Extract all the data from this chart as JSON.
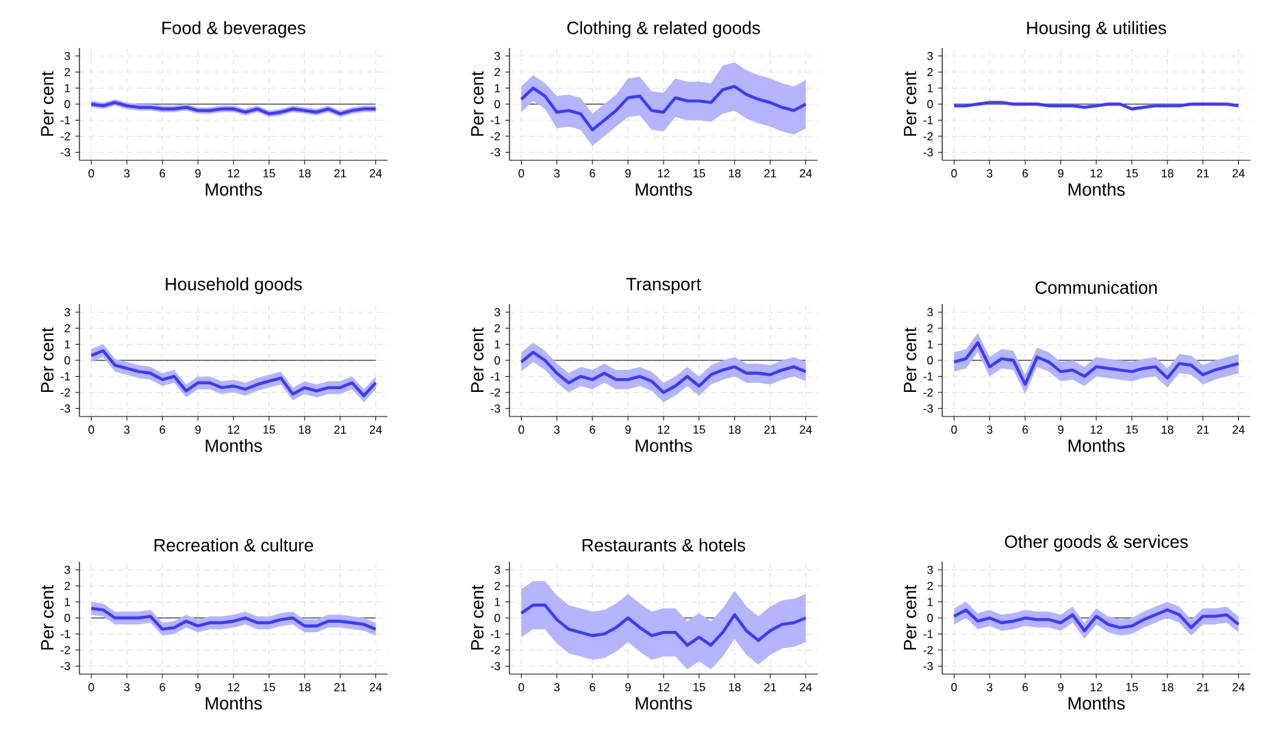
{
  "chart_data": [
    {
      "type": "line",
      "title": "Food & beverages",
      "xlabel": "Months",
      "ylabel": "Per cent",
      "x": [
        0,
        1,
        2,
        3,
        4,
        5,
        6,
        7,
        8,
        9,
        10,
        11,
        12,
        13,
        14,
        15,
        16,
        17,
        18,
        19,
        20,
        21,
        22,
        23,
        24
      ],
      "xlim": [
        -1,
        25
      ],
      "ylim": [
        -3.5,
        3.5
      ],
      "xticks": [
        0,
        3,
        6,
        9,
        12,
        15,
        18,
        21,
        24
      ],
      "yticks": [
        -3,
        -2,
        -1,
        0,
        1,
        2,
        3
      ],
      "grid": true,
      "ref_lines": [
        {
          "axis": "y",
          "value": 0,
          "color": "#000000"
        }
      ],
      "series": [
        {
          "color": "#3a3aff",
          "values": [
            0,
            -0.1,
            0.1,
            -0.1,
            -0.2,
            -0.2,
            -0.3,
            -0.3,
            -0.2,
            -0.4,
            -0.4,
            -0.3,
            -0.3,
            -0.5,
            -0.3,
            -0.6,
            -0.5,
            -0.3,
            -0.4,
            -0.5,
            -0.3,
            -0.6,
            -0.4,
            -0.3,
            -0.3
          ],
          "lower": [
            -0.2,
            -0.3,
            -0.1,
            -0.3,
            -0.4,
            -0.4,
            -0.5,
            -0.5,
            -0.4,
            -0.6,
            -0.6,
            -0.5,
            -0.5,
            -0.7,
            -0.5,
            -0.8,
            -0.7,
            -0.5,
            -0.6,
            -0.7,
            -0.5,
            -0.8,
            -0.6,
            -0.5,
            -0.5
          ],
          "upper": [
            0.2,
            0.1,
            0.3,
            0.1,
            0,
            0,
            -0.1,
            -0.1,
            0,
            -0.2,
            -0.2,
            -0.1,
            -0.1,
            -0.3,
            -0.1,
            -0.4,
            -0.3,
            -0.1,
            -0.2,
            -0.3,
            -0.1,
            -0.4,
            -0.2,
            -0.1,
            -0.1
          ]
        }
      ]
    },
    {
      "type": "line",
      "title": "Clothing & related goods",
      "xlabel": "Months",
      "ylabel": "Per cent",
      "x": [
        0,
        1,
        2,
        3,
        4,
        5,
        6,
        7,
        8,
        9,
        10,
        11,
        12,
        13,
        14,
        15,
        16,
        17,
        18,
        19,
        20,
        21,
        22,
        23,
        24
      ],
      "xlim": [
        -1,
        25
      ],
      "ylim": [
        -3.5,
        3.5
      ],
      "xticks": [
        0,
        3,
        6,
        9,
        12,
        15,
        18,
        21,
        24
      ],
      "yticks": [
        -3,
        -2,
        -1,
        0,
        1,
        2,
        3
      ],
      "grid": true,
      "ref_lines": [
        {
          "axis": "y",
          "value": 0,
          "color": "#000000"
        }
      ],
      "series": [
        {
          "color": "#3a3aff",
          "values": [
            0.3,
            1.0,
            0.5,
            -0.5,
            -0.4,
            -0.6,
            -1.6,
            -1.0,
            -0.4,
            0.4,
            0.5,
            -0.4,
            -0.5,
            0.4,
            0.2,
            0.2,
            0.1,
            0.9,
            1.1,
            0.6,
            0.3,
            0.1,
            -0.2,
            -0.4,
            0.0
          ],
          "lower": [
            -0.5,
            0.2,
            -0.3,
            -1.5,
            -1.4,
            -1.6,
            -2.6,
            -2.0,
            -1.4,
            -0.8,
            -0.7,
            -1.6,
            -1.7,
            -0.8,
            -1.0,
            -1.0,
            -1.1,
            -0.6,
            -0.4,
            -0.9,
            -1.2,
            -1.4,
            -1.7,
            -1.9,
            -1.5
          ],
          "upper": [
            1.1,
            1.8,
            1.3,
            0.5,
            0.6,
            0.4,
            -0.6,
            0,
            0.6,
            1.6,
            1.7,
            0.8,
            0.7,
            1.6,
            1.4,
            1.4,
            1.3,
            2.4,
            2.6,
            2.1,
            1.8,
            1.6,
            1.3,
            1.1,
            1.5
          ]
        }
      ]
    },
    {
      "type": "line",
      "title": "Housing & utilities",
      "xlabel": "Months",
      "ylabel": "Per cent",
      "x": [
        0,
        1,
        2,
        3,
        4,
        5,
        6,
        7,
        8,
        9,
        10,
        11,
        12,
        13,
        14,
        15,
        16,
        17,
        18,
        19,
        20,
        21,
        22,
        23,
        24
      ],
      "xlim": [
        -1,
        25
      ],
      "ylim": [
        -3.5,
        3.5
      ],
      "xticks": [
        0,
        3,
        6,
        9,
        12,
        15,
        18,
        21,
        24
      ],
      "yticks": [
        -3,
        -2,
        -1,
        0,
        1,
        2,
        3
      ],
      "grid": true,
      "ref_lines": [
        {
          "axis": "y",
          "value": 0,
          "color": "#000000"
        }
      ],
      "series": [
        {
          "color": "#3a3aff",
          "values": [
            -0.1,
            -0.1,
            0,
            0.1,
            0.1,
            0,
            0,
            0,
            -0.1,
            -0.1,
            -0.1,
            -0.2,
            -0.1,
            0,
            0,
            -0.3,
            -0.2,
            -0.1,
            -0.1,
            -0.1,
            0,
            0,
            0,
            0,
            -0.1
          ],
          "lower": [
            -0.2,
            -0.2,
            -0.1,
            0,
            0,
            -0.1,
            -0.1,
            -0.1,
            -0.2,
            -0.2,
            -0.2,
            -0.3,
            -0.2,
            -0.1,
            -0.1,
            -0.4,
            -0.3,
            -0.2,
            -0.2,
            -0.2,
            -0.1,
            -0.1,
            -0.1,
            -0.1,
            -0.2
          ],
          "upper": [
            0,
            0,
            0.1,
            0.2,
            0.2,
            0.1,
            0.1,
            0.1,
            0,
            0,
            0,
            -0.1,
            0,
            0.1,
            0.1,
            -0.2,
            -0.1,
            0,
            0,
            0,
            0.1,
            0.1,
            0.1,
            0.1,
            0
          ]
        }
      ]
    },
    {
      "type": "line",
      "title": "Household goods",
      "xlabel": "Months",
      "ylabel": "Per cent",
      "x": [
        0,
        1,
        2,
        3,
        4,
        5,
        6,
        7,
        8,
        9,
        10,
        11,
        12,
        13,
        14,
        15,
        16,
        17,
        18,
        19,
        20,
        21,
        22,
        23,
        24
      ],
      "xlim": [
        -1,
        25
      ],
      "ylim": [
        -3.5,
        3.5
      ],
      "xticks": [
        0,
        3,
        6,
        9,
        12,
        15,
        18,
        21,
        24
      ],
      "yticks": [
        -3,
        -2,
        -1,
        0,
        1,
        2,
        3
      ],
      "grid": true,
      "ref_lines": [
        {
          "axis": "y",
          "value": 0,
          "color": "#000000"
        }
      ],
      "series": [
        {
          "color": "#3a3aff",
          "values": [
            0.3,
            0.6,
            -0.3,
            -0.5,
            -0.7,
            -0.8,
            -1.2,
            -1.0,
            -1.9,
            -1.4,
            -1.4,
            -1.7,
            -1.6,
            -1.8,
            -1.5,
            -1.3,
            -1.1,
            -2.1,
            -1.7,
            -1.9,
            -1.7,
            -1.7,
            -1.4,
            -2.2,
            -1.4
          ],
          "lower": [
            -0.1,
            0.2,
            -0.7,
            -0.9,
            -1.1,
            -1.2,
            -1.6,
            -1.4,
            -2.3,
            -1.8,
            -1.8,
            -2.1,
            -2.0,
            -2.2,
            -1.9,
            -1.7,
            -1.5,
            -2.5,
            -2.1,
            -2.3,
            -2.1,
            -2.1,
            -1.8,
            -2.6,
            -1.8
          ],
          "upper": [
            0.7,
            1.0,
            0.1,
            -0.1,
            -0.3,
            -0.4,
            -0.8,
            -0.6,
            -1.5,
            -1.0,
            -1.0,
            -1.3,
            -1.2,
            -1.4,
            -1.1,
            -0.9,
            -0.7,
            -1.7,
            -1.3,
            -1.5,
            -1.3,
            -1.3,
            -1.0,
            -1.8,
            -1.0
          ]
        }
      ]
    },
    {
      "type": "line",
      "title": "Transport",
      "xlabel": "Months",
      "ylabel": "Per cent",
      "x": [
        0,
        1,
        2,
        3,
        4,
        5,
        6,
        7,
        8,
        9,
        10,
        11,
        12,
        13,
        14,
        15,
        16,
        17,
        18,
        19,
        20,
        21,
        22,
        23,
        24
      ],
      "xlim": [
        -1,
        25
      ],
      "ylim": [
        -3.5,
        3.5
      ],
      "xticks": [
        0,
        3,
        6,
        9,
        12,
        15,
        18,
        21,
        24
      ],
      "yticks": [
        -3,
        -2,
        -1,
        0,
        1,
        2,
        3
      ],
      "grid": true,
      "ref_lines": [
        {
          "axis": "y",
          "value": 0,
          "color": "#000000"
        }
      ],
      "series": [
        {
          "color": "#3a3aff",
          "values": [
            -0.1,
            0.5,
            0,
            -0.8,
            -1.4,
            -1.0,
            -1.2,
            -0.8,
            -1.2,
            -1.2,
            -1.0,
            -1.3,
            -2.0,
            -1.6,
            -1.0,
            -1.6,
            -0.9,
            -0.6,
            -0.4,
            -0.8,
            -0.8,
            -0.9,
            -0.6,
            -0.4,
            -0.7
          ],
          "lower": [
            -0.7,
            -0.1,
            -0.6,
            -1.4,
            -2.0,
            -1.6,
            -1.8,
            -1.4,
            -1.8,
            -1.8,
            -1.6,
            -1.9,
            -2.6,
            -2.2,
            -1.6,
            -2.2,
            -1.5,
            -1.2,
            -1.0,
            -1.4,
            -1.4,
            -1.5,
            -1.2,
            -1.0,
            -1.3
          ],
          "upper": [
            0.5,
            1.1,
            0.6,
            -0.2,
            -0.8,
            -0.4,
            -0.6,
            -0.2,
            -0.6,
            -0.6,
            -0.4,
            -0.7,
            -1.4,
            -1.0,
            -0.4,
            -1.0,
            -0.3,
            0,
            0.2,
            -0.2,
            -0.2,
            -0.3,
            0,
            0.2,
            -0.1
          ]
        }
      ]
    },
    {
      "type": "line",
      "title": "Communication",
      "xlabel": "Months",
      "ylabel": "Per cent",
      "x": [
        0,
        1,
        2,
        3,
        4,
        5,
        6,
        7,
        8,
        9,
        10,
        11,
        12,
        13,
        14,
        15,
        16,
        17,
        18,
        19,
        20,
        21,
        22,
        23,
        24
      ],
      "xlim": [
        -1,
        25
      ],
      "ylim": [
        -3.5,
        3.5
      ],
      "xticks": [
        0,
        3,
        6,
        9,
        12,
        15,
        18,
        21,
        24
      ],
      "yticks": [
        -3,
        -2,
        -1,
        0,
        1,
        2,
        3
      ],
      "grid": true,
      "ref_lines": [
        {
          "axis": "y",
          "value": 0,
          "color": "#000000"
        }
      ],
      "series": [
        {
          "color": "#3a3aff",
          "values": [
            -0.1,
            0.1,
            1.1,
            -0.4,
            0.1,
            0,
            -1.5,
            0.2,
            -0.1,
            -0.7,
            -0.6,
            -1.0,
            -0.4,
            -0.5,
            -0.6,
            -0.7,
            -0.5,
            -0.4,
            -1.1,
            -0.2,
            -0.3,
            -0.9,
            -0.6,
            -0.4,
            -0.2
          ],
          "lower": [
            -0.7,
            -0.5,
            0.5,
            -1.0,
            -0.5,
            -0.6,
            -2.1,
            -0.4,
            -0.7,
            -1.3,
            -1.2,
            -1.6,
            -1.0,
            -1.1,
            -1.2,
            -1.3,
            -1.1,
            -1.0,
            -1.7,
            -0.8,
            -0.9,
            -1.5,
            -1.2,
            -1.0,
            -0.8
          ],
          "upper": [
            0.5,
            0.7,
            1.7,
            0.2,
            0.7,
            0.6,
            -0.9,
            0.8,
            0.5,
            -0.1,
            0,
            -0.4,
            0.2,
            0.1,
            0,
            -0.1,
            0.1,
            0.2,
            -0.5,
            0.4,
            0.3,
            -0.3,
            0,
            0.2,
            0.4
          ]
        }
      ]
    },
    {
      "type": "line",
      "title": "Recreation & culture",
      "xlabel": "Months",
      "ylabel": "Per cent",
      "x": [
        0,
        1,
        2,
        3,
        4,
        5,
        6,
        7,
        8,
        9,
        10,
        11,
        12,
        13,
        14,
        15,
        16,
        17,
        18,
        19,
        20,
        21,
        22,
        23,
        24
      ],
      "xlim": [
        -1,
        25
      ],
      "ylim": [
        -3.5,
        3.5
      ],
      "xticks": [
        0,
        3,
        6,
        9,
        12,
        15,
        18,
        21,
        24
      ],
      "yticks": [
        -3,
        -2,
        -1,
        0,
        1,
        2,
        3
      ],
      "grid": true,
      "ref_lines": [
        {
          "axis": "y",
          "value": 0,
          "color": "#000000"
        }
      ],
      "series": [
        {
          "color": "#3a3aff",
          "values": [
            0.6,
            0.5,
            0,
            0,
            0,
            0.1,
            -0.7,
            -0.6,
            -0.2,
            -0.5,
            -0.3,
            -0.3,
            -0.2,
            0,
            -0.3,
            -0.3,
            -0.1,
            0,
            -0.5,
            -0.5,
            -0.2,
            -0.2,
            -0.3,
            -0.4,
            -0.7
          ],
          "lower": [
            0.2,
            0.1,
            -0.4,
            -0.4,
            -0.4,
            -0.3,
            -1.1,
            -1.0,
            -0.6,
            -0.9,
            -0.7,
            -0.7,
            -0.6,
            -0.4,
            -0.7,
            -0.7,
            -0.5,
            -0.4,
            -0.9,
            -0.9,
            -0.6,
            -0.6,
            -0.7,
            -0.8,
            -1.1
          ],
          "upper": [
            1.0,
            0.9,
            0.4,
            0.4,
            0.4,
            0.5,
            -0.3,
            -0.2,
            0.2,
            -0.1,
            0.1,
            0.1,
            0.2,
            0.4,
            0.1,
            0.1,
            0.3,
            0.4,
            -0.1,
            -0.1,
            0.2,
            0.2,
            0.1,
            0,
            -0.3
          ]
        }
      ]
    },
    {
      "type": "line",
      "title": "Restaurants & hotels",
      "xlabel": "Months",
      "ylabel": "Per cent",
      "x": [
        0,
        1,
        2,
        3,
        4,
        5,
        6,
        7,
        8,
        9,
        10,
        11,
        12,
        13,
        14,
        15,
        16,
        17,
        18,
        19,
        20,
        21,
        22,
        23,
        24
      ],
      "xlim": [
        -1,
        25
      ],
      "ylim": [
        -3.5,
        3.5
      ],
      "xticks": [
        0,
        3,
        6,
        9,
        12,
        15,
        18,
        21,
        24
      ],
      "yticks": [
        -3,
        -2,
        -1,
        0,
        1,
        2,
        3
      ],
      "grid": true,
      "ref_lines": [
        {
          "axis": "y",
          "value": 0,
          "color": "#000000"
        }
      ],
      "series": [
        {
          "color": "#3a3aff",
          "values": [
            0.3,
            0.8,
            0.8,
            -0.1,
            -0.7,
            -0.9,
            -1.1,
            -1.0,
            -0.6,
            0,
            -0.6,
            -1.1,
            -0.9,
            -0.9,
            -1.7,
            -1.2,
            -1.7,
            -0.9,
            0.2,
            -0.8,
            -1.4,
            -0.8,
            -0.4,
            -0.3,
            0
          ],
          "lower": [
            -1.2,
            -0.7,
            -0.7,
            -1.6,
            -2.2,
            -2.4,
            -2.6,
            -2.5,
            -2.1,
            -1.5,
            -2.1,
            -2.6,
            -2.4,
            -2.4,
            -3.2,
            -2.7,
            -3.2,
            -2.4,
            -1.3,
            -2.3,
            -2.9,
            -2.3,
            -1.9,
            -1.8,
            -1.5
          ],
          "upper": [
            1.8,
            2.3,
            2.3,
            1.4,
            0.8,
            0.6,
            0.4,
            0.5,
            0.9,
            1.5,
            0.9,
            0.4,
            0.6,
            0.6,
            -0.2,
            0.3,
            -0.2,
            0.6,
            1.7,
            0.7,
            0.1,
            0.7,
            1.1,
            1.2,
            1.5
          ]
        }
      ]
    },
    {
      "type": "line",
      "title": "Other goods & services",
      "xlabel": "Months",
      "ylabel": "Per cent",
      "x": [
        0,
        1,
        2,
        3,
        4,
        5,
        6,
        7,
        8,
        9,
        10,
        11,
        12,
        13,
        14,
        15,
        16,
        17,
        18,
        19,
        20,
        21,
        22,
        23,
        24
      ],
      "xlim": [
        -1,
        25
      ],
      "ylim": [
        -3.5,
        3.5
      ],
      "xticks": [
        0,
        3,
        6,
        9,
        12,
        15,
        18,
        21,
        24
      ],
      "yticks": [
        -3,
        -2,
        -1,
        0,
        1,
        2,
        3
      ],
      "grid": true,
      "ref_lines": [
        {
          "axis": "y",
          "value": 0,
          "color": "#000000"
        }
      ],
      "series": [
        {
          "color": "#3a3aff",
          "values": [
            0.1,
            0.5,
            -0.2,
            0,
            -0.3,
            -0.2,
            0,
            -0.1,
            -0.1,
            -0.3,
            0.2,
            -0.8,
            0.1,
            -0.4,
            -0.6,
            -0.5,
            -0.1,
            0.2,
            0.5,
            0.2,
            -0.6,
            0.1,
            0.1,
            0.2,
            -0.4
          ],
          "lower": [
            -0.4,
            0,
            -0.7,
            -0.5,
            -0.8,
            -0.7,
            -0.5,
            -0.6,
            -0.6,
            -0.8,
            -0.3,
            -1.3,
            -0.4,
            -0.9,
            -1.1,
            -1.0,
            -0.6,
            -0.3,
            0,
            -0.3,
            -1.1,
            -0.4,
            -0.4,
            -0.3,
            -0.9
          ],
          "upper": [
            0.6,
            1.0,
            0.3,
            0.5,
            0.2,
            0.3,
            0.5,
            0.4,
            0.4,
            0.2,
            0.7,
            -0.3,
            0.6,
            0.1,
            -0.1,
            0,
            0.4,
            0.7,
            1.0,
            0.7,
            -0.1,
            0.6,
            0.6,
            0.7,
            0.1
          ]
        }
      ]
    }
  ]
}
